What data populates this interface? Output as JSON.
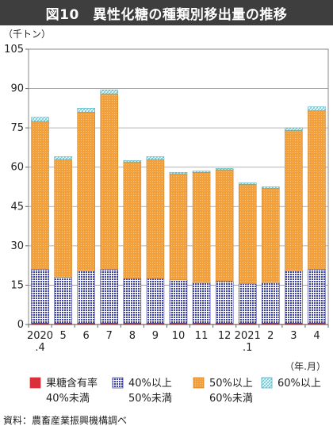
{
  "title": "図10　異性化糖の種類別移出量の推移",
  "unit_label": "（千トン）",
  "x_unit_label": "（年.月）",
  "source": "資料：農畜産業振興機構調べ",
  "colors": {
    "s1": "#d9303a",
    "s2": "#3b3fa8",
    "s3": "#f2a03c",
    "s4": "#5ec8d8"
  },
  "chart_data": {
    "type": "bar",
    "stacked": true,
    "ylim": [
      0,
      105
    ],
    "yticks": [
      0,
      15,
      30,
      45,
      60,
      75,
      90,
      105
    ],
    "grid": true,
    "legend_position": "bottom",
    "categories": [
      [
        "2020",
        ".4"
      ],
      [
        "5"
      ],
      [
        "6"
      ],
      [
        "7"
      ],
      [
        "8"
      ],
      [
        "9"
      ],
      [
        "10"
      ],
      [
        "11"
      ],
      [
        "12"
      ],
      [
        "2021",
        ".1"
      ],
      [
        "2"
      ],
      [
        "3"
      ],
      [
        "4"
      ]
    ],
    "series": [
      {
        "name": [
          "果糖含有率",
          "40%未満"
        ],
        "values": [
          0.5,
          0.5,
          0.5,
          0.5,
          0.5,
          0.5,
          0.5,
          0.5,
          0.5,
          0.5,
          0.5,
          0.5,
          0.5
        ]
      },
      {
        "name": [
          "40%以上",
          "50%未満"
        ],
        "values": [
          20.5,
          17.5,
          20,
          20.5,
          17,
          17,
          16.5,
          15.5,
          16,
          15,
          15.5,
          20,
          20.5
        ]
      },
      {
        "name": [
          "50%以上",
          "60%未満"
        ],
        "values": [
          56.5,
          45,
          60.5,
          67,
          44.5,
          45.5,
          40.5,
          42,
          42.5,
          38,
          36,
          53.5,
          60.5
        ]
      },
      {
        "name": [
          "60%以上"
        ],
        "values": [
          1.5,
          1,
          1.5,
          1.5,
          0.5,
          1,
          0.5,
          0.5,
          0.5,
          0.5,
          0.5,
          1,
          1.5
        ]
      }
    ]
  }
}
